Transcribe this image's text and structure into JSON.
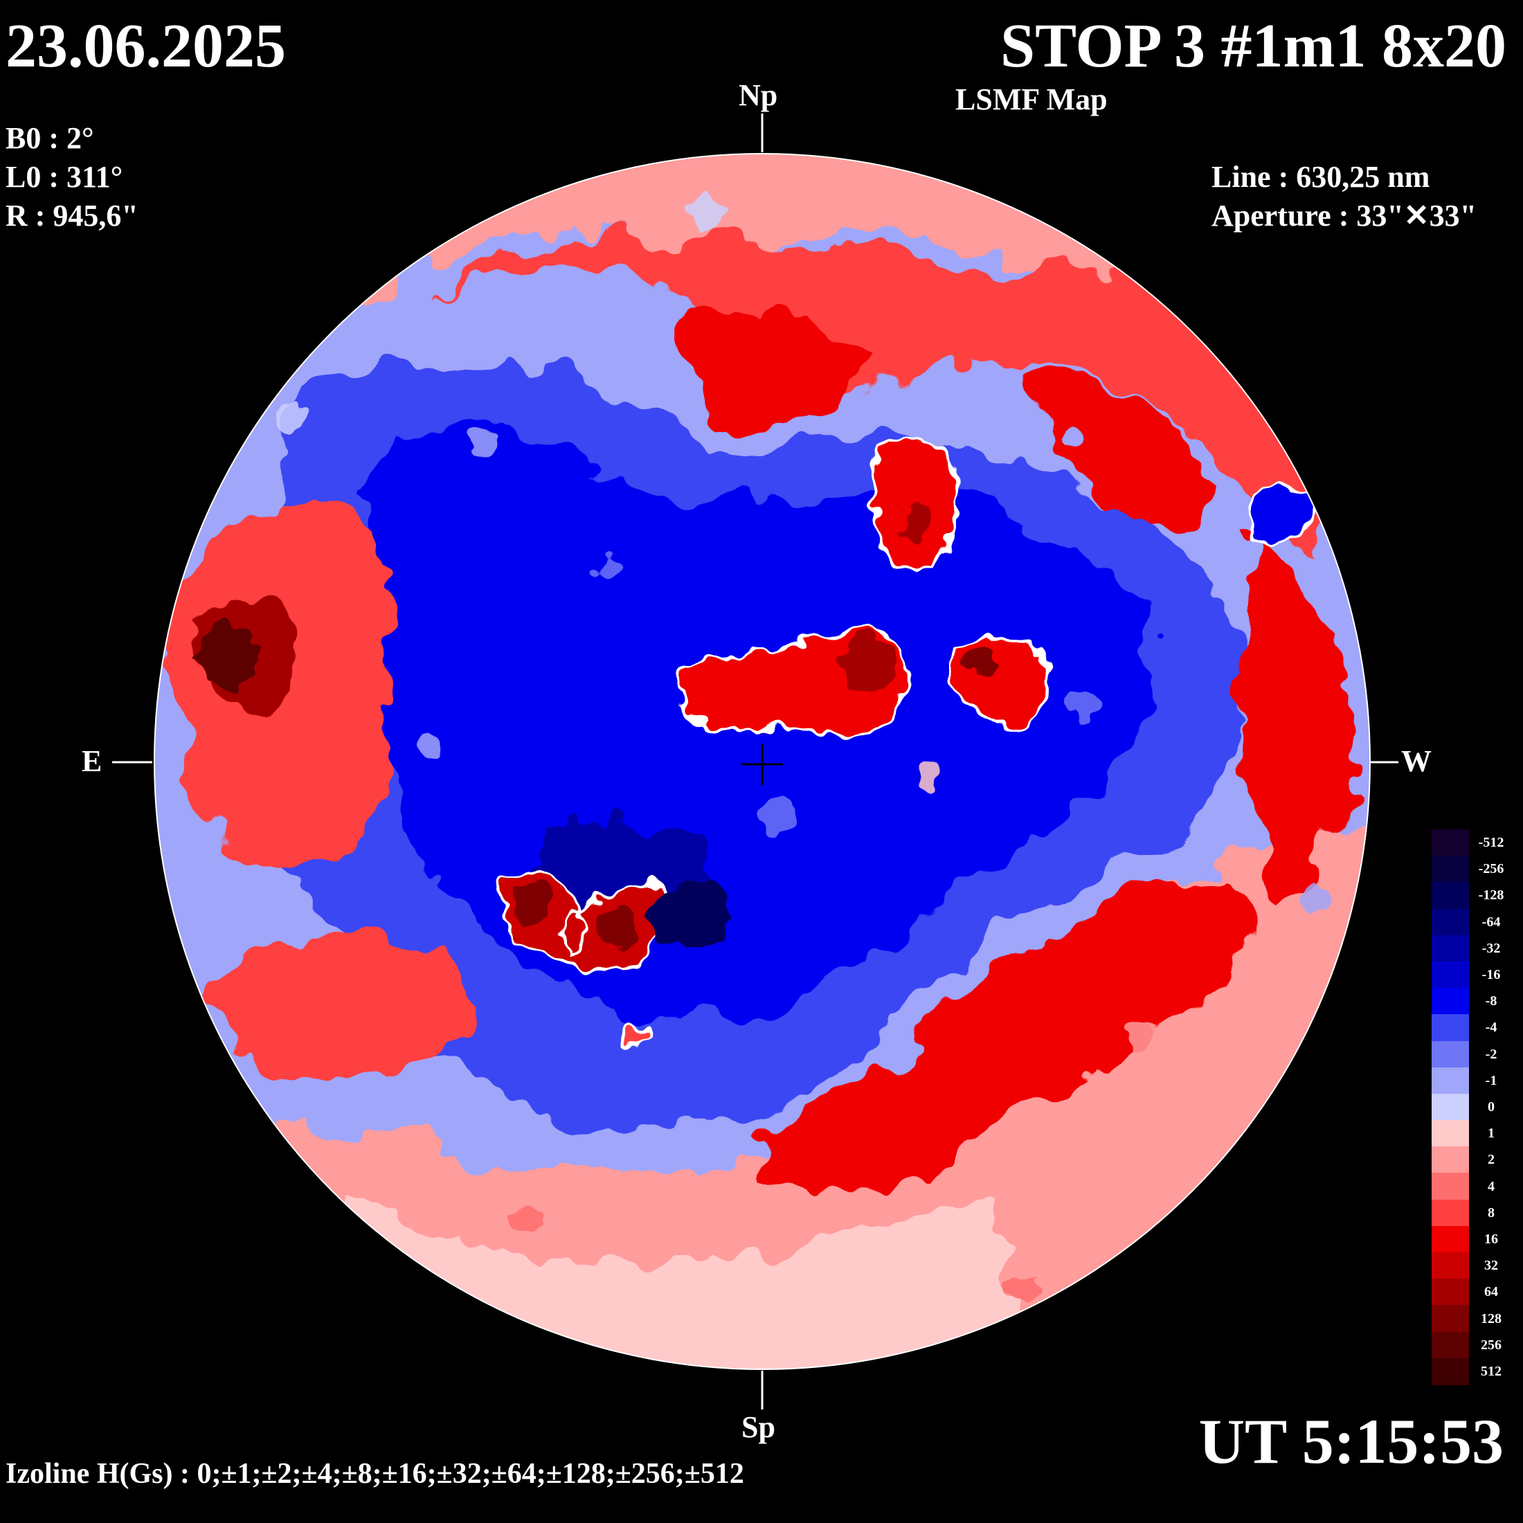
{
  "header": {
    "date": "23.06.2025",
    "title": "STOP 3 #1m1 8x20",
    "subtitle": "LSMF  Map"
  },
  "params": {
    "b0": "B0 : 2°",
    "l0": "L0 : 311°",
    "r": "R  : 945,6\"",
    "line": "Line :  630,25 nm",
    "aperture": "Aperture : 33\"✕33\""
  },
  "compass": {
    "north": "Np",
    "south": "Sp",
    "east": "E",
    "west": "W"
  },
  "time": "UT 5:15:53",
  "izoline": "Izoline H(Gs) : 0;±1;±2;±4;±8;±16;±32;±64;±128;±256;±512",
  "colorbar": {
    "levels": [
      {
        "label": "-512",
        "color": "#14002e"
      },
      {
        "label": "-256",
        "color": "#06003e"
      },
      {
        "label": "-128",
        "color": "#00005c"
      },
      {
        "label": "-64",
        "color": "#00007e"
      },
      {
        "label": "-32",
        "color": "#0000a4"
      },
      {
        "label": "-16",
        "color": "#0000cc"
      },
      {
        "label": "-8",
        "color": "#0000f0"
      },
      {
        "label": "-4",
        "color": "#3a46f2"
      },
      {
        "label": "-2",
        "color": "#6e76f6"
      },
      {
        "label": "-1",
        "color": "#a0a6fa"
      },
      {
        "label": "0",
        "color": "#ccd0fd"
      },
      {
        "label": "1",
        "color": "#ffcaca"
      },
      {
        "label": "2",
        "color": "#ff9c9c"
      },
      {
        "label": "4",
        "color": "#ff6e6e"
      },
      {
        "label": "8",
        "color": "#ff4040"
      },
      {
        "label": "16",
        "color": "#f00000"
      },
      {
        "label": "32",
        "color": "#cc0000"
      },
      {
        "label": "64",
        "color": "#a40000"
      },
      {
        "label": "128",
        "color": "#7e0000"
      },
      {
        "label": "256",
        "color": "#5c0000"
      },
      {
        "label": "512",
        "color": "#3e0000"
      }
    ]
  }
}
